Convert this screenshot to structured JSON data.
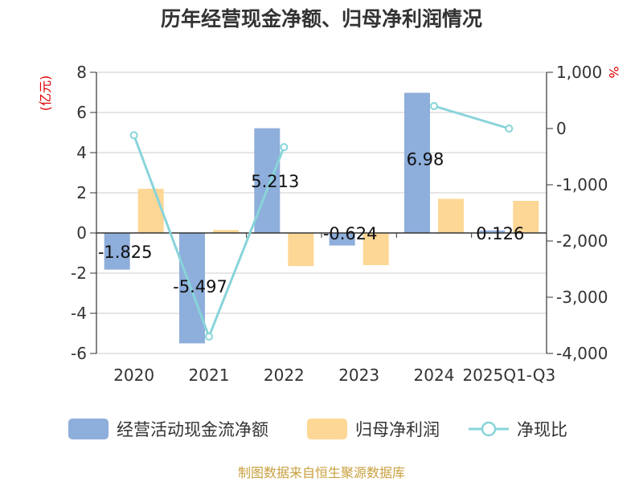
{
  "chart_data": {
    "type": "bar",
    "title": "历年经营现金净额、归母净利润情况",
    "categories": [
      "2020",
      "2021",
      "2022",
      "2023",
      "2024",
      "2025Q1-Q3"
    ],
    "series": [
      {
        "name": "经营活动现金流净额",
        "type": "bar",
        "axis": "left",
        "color": "#8eaedb",
        "values": [
          -1.825,
          -5.497,
          5.213,
          -0.624,
          6.98,
          0.126
        ]
      },
      {
        "name": "归母净利润",
        "type": "bar",
        "axis": "left",
        "color": "#fdd795",
        "values": [
          2.2,
          0.15,
          -1.65,
          -1.6,
          1.7,
          1.6
        ]
      },
      {
        "name": "净现比",
        "type": "line",
        "axis": "right",
        "color": "#88d4da",
        "values": [
          -120,
          -3700,
          -330,
          null,
          400,
          0
        ]
      }
    ],
    "data_labels": [
      "-1.825",
      "-5.497",
      "5.213",
      "-0.624",
      "6.98",
      "0.126"
    ],
    "y_left": {
      "label": "(亿元)",
      "min": -6,
      "max": 8,
      "ticks": [
        -6,
        -4,
        -2,
        0,
        2,
        4,
        6,
        8
      ],
      "tick_labels": [
        "-6",
        "-4",
        "-2",
        "0",
        "2",
        "4",
        "6",
        "8"
      ]
    },
    "y_right": {
      "label": "%",
      "min": -4000,
      "max": 1000,
      "ticks": [
        -4000,
        -3000,
        -2000,
        -1000,
        0,
        1000
      ],
      "tick_labels": [
        "-4,000",
        "-3,000",
        "-2,000",
        "-1,000",
        "0",
        "1,000"
      ]
    },
    "grid": true,
    "legend_position": "bottom",
    "source": "制图数据来自恒生聚源数据库"
  }
}
